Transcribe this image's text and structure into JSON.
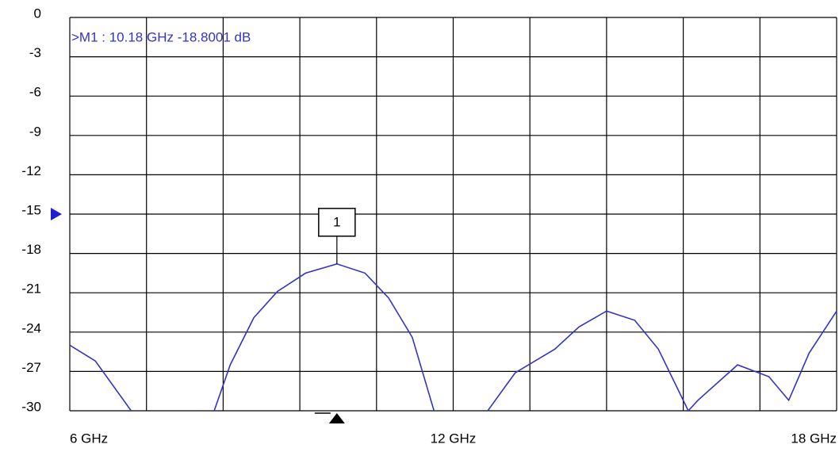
{
  "chart_data": {
    "type": "line",
    "readout": ">M1 :  10.18 GHz  -18.8001  dB",
    "x": [
      6,
      6.4,
      6.96,
      null,
      8.26,
      8.51,
      8.88,
      9.25,
      9.69,
      10.18,
      10.62,
      10.99,
      11.36,
      11.7,
      null,
      12.54,
      12.97,
      13.59,
      13.97,
      14.4,
      14.84,
      15.21,
      15.68,
      15.83,
      16.45,
      16.94,
      17.25,
      17.57,
      18
    ],
    "values": [
      -25,
      -26.2,
      -30,
      null,
      -30,
      -26.5,
      -22.9,
      -20.9,
      -19.5,
      -18.8,
      -19.5,
      -21.4,
      -24.4,
      -30,
      null,
      -30,
      -27.1,
      -25.3,
      -23.6,
      -22.4,
      -23.1,
      -25.3,
      -30,
      -29.2,
      -26.5,
      -27.4,
      -29.2,
      -25.6,
      -22.4
    ],
    "color": "#3333c8",
    "xlim": [
      6,
      18
    ],
    "ylim": [
      -30,
      0
    ],
    "xticks": [
      {
        "value": 6,
        "label": "6 GHz"
      },
      {
        "value": 12,
        "label": "12 GHz"
      },
      {
        "value": 18,
        "label": "18 GHz"
      }
    ],
    "xgrid": [
      6,
      7.2,
      8.4,
      9.6,
      10.8,
      12,
      13.2,
      14.4,
      15.6,
      16.8,
      18
    ],
    "yticks": [
      0,
      -3,
      -6,
      -9,
      -12,
      -15,
      -18,
      -21,
      -24,
      -27,
      -30
    ],
    "reference_level": -15,
    "marker": {
      "label": "1",
      "x": 10.18,
      "y": -18.8001
    },
    "grid": true
  }
}
